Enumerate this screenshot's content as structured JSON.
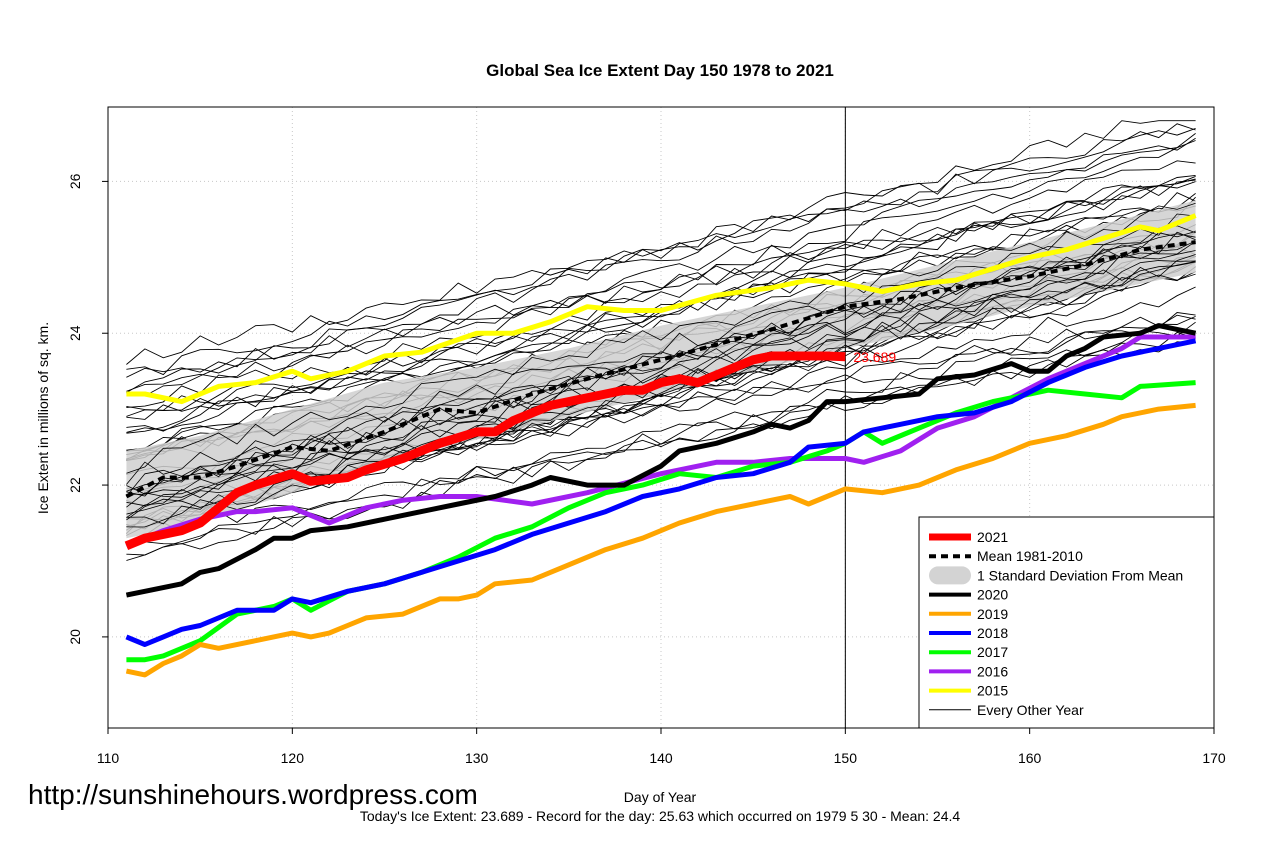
{
  "chart_data": {
    "type": "line",
    "title": "Global Sea Ice Extent Day 150 1978 to 2021",
    "xlabel": "Day of Year",
    "ylabel": "Ice Extent in millions of sq. km.",
    "xlim": [
      110,
      170
    ],
    "ylim": [
      18.8,
      26.98
    ],
    "x_ticks": [
      110,
      120,
      130,
      140,
      150,
      160,
      170
    ],
    "y_ticks": [
      20,
      22,
      24,
      26
    ],
    "x_tick_labels": [
      "110",
      "120",
      "130",
      "140",
      "150",
      "160",
      "170"
    ],
    "y_tick_labels": [
      "20",
      "22",
      "24",
      "26"
    ],
    "grid": true,
    "current_day": 150,
    "current_value_label": "23.689",
    "watermark": "http://sunshinehours.wordpress.com",
    "footnote": "Today's Ice Extent: 23.689  - Record for the day: 25.63 which occurred on 1979 5 30  - Mean: 24.4",
    "legend_position": "bottom-right",
    "legend": [
      {
        "label": "2021",
        "color": "#ff0000",
        "style": "thick"
      },
      {
        "label": "Mean 1981-2010",
        "color": "#000000",
        "style": "dashed"
      },
      {
        "label": "1 Standard Deviation From Mean",
        "color": "#d3d3d3",
        "style": "band"
      },
      {
        "label": "2020",
        "color": "#000000",
        "style": "solid"
      },
      {
        "label": "2019",
        "color": "#ffa500",
        "style": "solid"
      },
      {
        "label": "2018",
        "color": "#0000ff",
        "style": "solid"
      },
      {
        "label": "2017",
        "color": "#00ff00",
        "style": "solid"
      },
      {
        "label": "2016",
        "color": "#a020f0",
        "style": "solid"
      },
      {
        "label": "2015",
        "color": "#ffff00",
        "style": "solid"
      },
      {
        "label": "Every Other Year",
        "color": "#000000",
        "style": "thin"
      }
    ],
    "std_band": {
      "x": [
        111,
        115,
        120,
        125,
        130,
        135,
        140,
        145,
        150,
        155,
        160,
        165,
        169
      ],
      "upper": [
        22.45,
        22.65,
        23.0,
        23.35,
        23.55,
        23.8,
        24.1,
        24.35,
        24.6,
        24.9,
        25.2,
        25.5,
        25.75
      ],
      "lower": [
        21.3,
        21.5,
        21.9,
        22.3,
        22.6,
        22.9,
        23.2,
        23.5,
        23.8,
        24.05,
        24.35,
        24.6,
        24.8
      ]
    },
    "series": [
      {
        "name": "Mean 1981-2010",
        "color": "#000000",
        "width": 4,
        "dash": "7,5",
        "x": [
          111,
          113,
          115,
          117,
          120,
          122,
          125,
          128,
          130,
          133,
          136,
          140,
          143,
          146,
          150,
          153,
          156,
          160,
          163,
          166,
          169
        ],
        "values": [
          21.85,
          22.1,
          22.1,
          22.25,
          22.5,
          22.45,
          22.7,
          23.0,
          22.95,
          23.2,
          23.4,
          23.65,
          23.85,
          24.05,
          24.35,
          24.45,
          24.6,
          24.75,
          24.9,
          25.1,
          25.2
        ]
      },
      {
        "name": "2015",
        "color": "#ffff00",
        "width": 5,
        "x": [
          111,
          112,
          114,
          116,
          118,
          120,
          121,
          123,
          125,
          127,
          130,
          132,
          134,
          136,
          138,
          140,
          143,
          146,
          148,
          150,
          152,
          154,
          156,
          158,
          160,
          162,
          164,
          166,
          167,
          169
        ],
        "values": [
          23.2,
          23.2,
          23.1,
          23.3,
          23.35,
          23.5,
          23.4,
          23.5,
          23.7,
          23.75,
          24.0,
          24.0,
          24.15,
          24.35,
          24.3,
          24.3,
          24.5,
          24.6,
          24.7,
          24.65,
          24.55,
          24.65,
          24.7,
          24.85,
          25.0,
          25.1,
          25.25,
          25.4,
          25.35,
          25.55
        ]
      },
      {
        "name": "2016",
        "color": "#a020f0",
        "width": 5,
        "x": [
          111,
          113,
          115,
          117,
          118,
          120,
          122,
          124,
          126,
          128,
          130,
          133,
          136,
          140,
          143,
          145,
          147,
          150,
          151,
          153,
          155,
          157,
          159,
          161,
          163,
          165,
          166,
          167,
          169
        ],
        "values": [
          21.2,
          21.4,
          21.55,
          21.65,
          21.65,
          21.7,
          21.5,
          21.7,
          21.8,
          21.85,
          21.85,
          21.75,
          21.9,
          22.15,
          22.3,
          22.3,
          22.35,
          22.35,
          22.3,
          22.45,
          22.75,
          22.9,
          23.15,
          23.4,
          23.6,
          23.8,
          23.95,
          23.95,
          23.95
        ]
      },
      {
        "name": "2017",
        "color": "#00ff00",
        "width": 5,
        "x": [
          111,
          112,
          113,
          115,
          117,
          119,
          120,
          121,
          123,
          125,
          127,
          129,
          131,
          133,
          135,
          137,
          139,
          141,
          143,
          145,
          147,
          149,
          150,
          151,
          152,
          154,
          156,
          158,
          160,
          161,
          163,
          165,
          166,
          169
        ],
        "values": [
          19.7,
          19.7,
          19.75,
          19.95,
          20.3,
          20.4,
          20.5,
          20.35,
          20.6,
          20.7,
          20.85,
          21.05,
          21.3,
          21.45,
          21.7,
          21.9,
          22.0,
          22.15,
          22.1,
          22.25,
          22.3,
          22.45,
          22.55,
          22.7,
          22.55,
          22.75,
          22.95,
          23.1,
          23.2,
          23.25,
          23.2,
          23.15,
          23.3,
          23.35
        ]
      },
      {
        "name": "2018",
        "color": "#0000ff",
        "width": 5,
        "x": [
          111,
          112,
          113,
          114,
          115,
          117,
          119,
          120,
          121,
          123,
          125,
          127,
          129,
          131,
          133,
          135,
          137,
          139,
          141,
          143,
          145,
          147,
          148,
          150,
          151,
          153,
          155,
          157,
          159,
          161,
          163,
          165,
          167,
          169
        ],
        "values": [
          20.0,
          19.9,
          20.0,
          20.1,
          20.15,
          20.35,
          20.35,
          20.5,
          20.45,
          20.6,
          20.7,
          20.85,
          21.0,
          21.15,
          21.35,
          21.5,
          21.65,
          21.85,
          21.95,
          22.1,
          22.15,
          22.3,
          22.5,
          22.55,
          22.7,
          22.8,
          22.9,
          22.95,
          23.1,
          23.35,
          23.55,
          23.7,
          23.8,
          23.9
        ]
      },
      {
        "name": "2019",
        "color": "#ffa500",
        "width": 5,
        "x": [
          111,
          112,
          113,
          114,
          115,
          116,
          118,
          120,
          121,
          122,
          123,
          124,
          126,
          128,
          129,
          130,
          131,
          133,
          135,
          137,
          139,
          141,
          143,
          145,
          147,
          148,
          149,
          150,
          152,
          154,
          156,
          158,
          160,
          162,
          164,
          165,
          167,
          169
        ],
        "values": [
          19.55,
          19.5,
          19.65,
          19.75,
          19.9,
          19.85,
          19.95,
          20.05,
          20.0,
          20.05,
          20.15,
          20.25,
          20.3,
          20.5,
          20.5,
          20.55,
          20.7,
          20.75,
          20.95,
          21.15,
          21.3,
          21.5,
          21.65,
          21.75,
          21.85,
          21.75,
          21.85,
          21.95,
          21.9,
          22.0,
          22.2,
          22.35,
          22.55,
          22.65,
          22.8,
          22.9,
          23.0,
          23.05
        ]
      },
      {
        "name": "2020",
        "color": "#000000",
        "width": 5,
        "x": [
          111,
          112,
          114,
          115,
          116,
          118,
          119,
          120,
          121,
          123,
          125,
          127,
          129,
          131,
          133,
          134,
          136,
          138,
          140,
          141,
          143,
          145,
          146,
          147,
          148,
          149,
          150,
          152,
          154,
          155,
          157,
          159,
          160,
          161,
          162,
          163,
          164,
          166,
          167,
          168,
          169
        ],
        "values": [
          20.55,
          20.6,
          20.7,
          20.85,
          20.9,
          21.15,
          21.3,
          21.3,
          21.4,
          21.45,
          21.55,
          21.65,
          21.75,
          21.85,
          22.0,
          22.1,
          22.0,
          22.0,
          22.25,
          22.45,
          22.55,
          22.7,
          22.8,
          22.75,
          22.85,
          23.1,
          23.1,
          23.15,
          23.2,
          23.4,
          23.45,
          23.6,
          23.5,
          23.5,
          23.7,
          23.8,
          23.95,
          24.0,
          24.1,
          24.05,
          24.0
        ]
      },
      {
        "name": "2021",
        "color": "#ff0000",
        "width": 9,
        "x": [
          111,
          112,
          114,
          115,
          117,
          118,
          120,
          121,
          123,
          124,
          126,
          128,
          130,
          131,
          132,
          134,
          136,
          137,
          138,
          139,
          140,
          141,
          142,
          143,
          144,
          145,
          146,
          147,
          148,
          149,
          150
        ],
        "values": [
          21.2,
          21.3,
          21.4,
          21.5,
          21.9,
          22.0,
          22.15,
          22.05,
          22.1,
          22.2,
          22.35,
          22.55,
          22.7,
          22.7,
          22.85,
          23.05,
          23.15,
          23.2,
          23.25,
          23.25,
          23.35,
          23.4,
          23.35,
          23.45,
          23.55,
          23.65,
          23.7,
          23.7,
          23.7,
          23.7,
          23.689
        ]
      }
    ]
  }
}
